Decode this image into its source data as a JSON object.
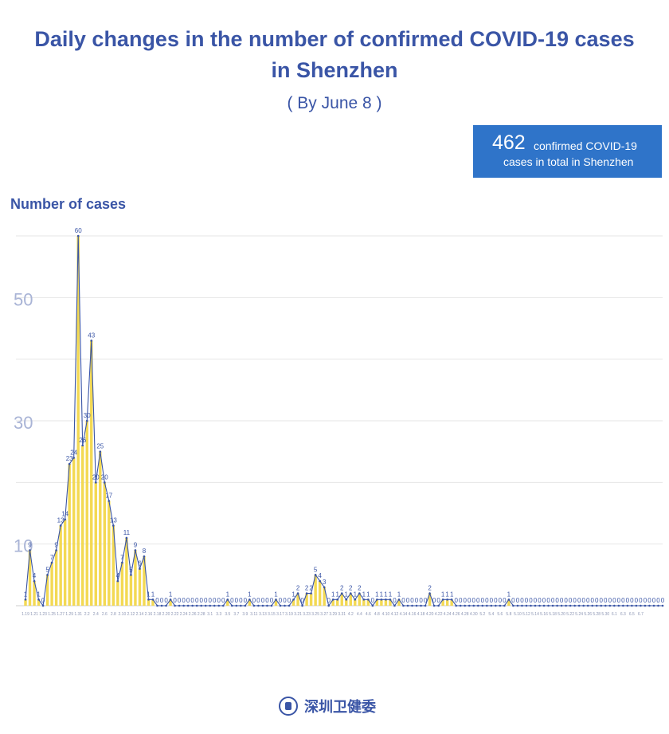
{
  "title_line1": "Daily changes in the number of confirmed COVID-19 cases",
  "title_line2": "in Shenzhen",
  "subtitle": "( By June 8 )",
  "total": {
    "number": "462",
    "line1": "confirmed COVID-19",
    "line2": "cases in total in Shenzhen"
  },
  "footer": {
    "org": "深圳卫健委"
  },
  "colors": {
    "title": "#3a55a6",
    "box": "#2f74c9",
    "bar": "#f2d74a",
    "line": "#3a55a6"
  },
  "chart_data": {
    "type": "area",
    "ylabel": "Number of cases",
    "ylim": [
      0,
      60
    ],
    "y_ticks": [
      10,
      30,
      50
    ],
    "grid": true,
    "values": [
      1,
      9,
      4,
      1,
      0,
      5,
      7,
      9,
      13,
      14,
      23,
      24,
      60,
      26,
      30,
      43,
      20,
      25,
      20,
      17,
      13,
      4,
      7,
      11,
      5,
      9,
      6,
      8,
      1,
      1,
      0,
      0,
      0,
      1,
      0,
      0,
      0,
      0,
      0,
      0,
      0,
      0,
      0,
      0,
      0,
      0,
      1,
      0,
      0,
      0,
      0,
      1,
      0,
      0,
      0,
      0,
      0,
      1,
      0,
      0,
      0,
      1,
      2,
      0,
      2,
      2,
      5,
      4,
      3,
      0,
      1,
      1,
      2,
      1,
      2,
      1,
      2,
      1,
      1,
      0,
      1,
      1,
      1,
      1,
      0,
      1,
      0,
      0,
      0,
      0,
      0,
      0,
      2,
      0,
      0,
      1,
      1,
      1,
      0,
      0,
      0,
      0,
      0,
      0,
      0,
      0,
      0,
      0,
      0,
      0,
      1,
      0,
      0,
      0,
      0,
      0,
      0,
      0,
      0,
      0,
      0,
      0,
      0,
      0,
      0,
      0,
      0,
      0,
      0,
      0,
      0,
      0,
      0,
      0,
      0,
      0,
      0,
      0,
      0,
      0,
      0,
      0,
      0,
      0,
      0,
      0
    ],
    "x_tick_labels": [
      "1.19",
      "1.21",
      "1.23",
      "1.25",
      "1.27",
      "1.29",
      "1.31",
      "2.2",
      "2.4",
      "2.6",
      "2.8",
      "2.10",
      "2.12",
      "2.14",
      "2.16",
      "2.18",
      "2.20",
      "2.22",
      "2.24",
      "2.26",
      "2.28",
      "3.1",
      "3.3",
      "3.5",
      "3.7",
      "3.9",
      "3.11",
      "3.13",
      "3.15",
      "3.17",
      "3.19",
      "3.21",
      "3.23",
      "3.25",
      "3.27",
      "3.29",
      "3.31",
      "4.2",
      "4.4",
      "4.6",
      "4.8",
      "4.10",
      "4.12",
      "4.14",
      "4.16",
      "4.18",
      "4.20",
      "4.22",
      "4.24",
      "4.26",
      "4.28",
      "4.30",
      "5.2",
      "5.4",
      "5.6",
      "5.8",
      "5.10",
      "5.12",
      "5.14",
      "5.16",
      "5.18",
      "5.20",
      "5.22",
      "5.24",
      "5.26",
      "5.28",
      "5.30",
      "6.1",
      "6.3",
      "6.5",
      "6.7"
    ]
  }
}
